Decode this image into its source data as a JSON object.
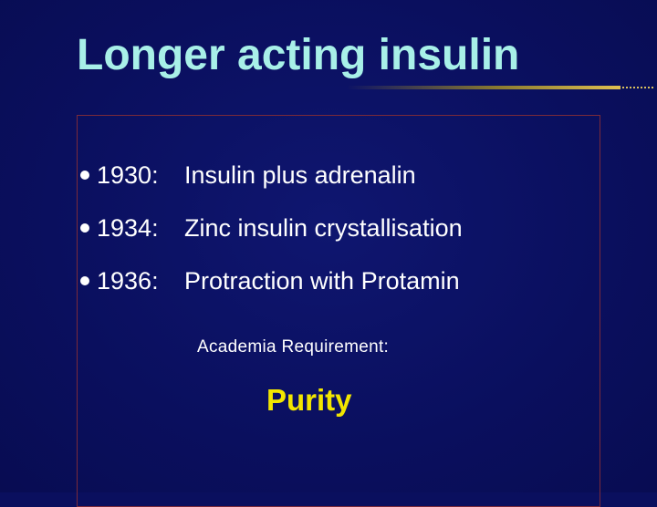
{
  "slide": {
    "title": "Longer acting insulin",
    "bullets": [
      {
        "year": "1930:",
        "text": "Insulin plus adrenalin"
      },
      {
        "year": "1934:",
        "text": "Zinc insulin crystallisation"
      },
      {
        "year": "1936:",
        "text": "Protraction with Protamin"
      }
    ],
    "subheading": "Academia Requirement:",
    "emphasis": "Purity"
  },
  "colors": {
    "background": "#0a0f5e",
    "title": "#a8f0e8",
    "body_text": "#ffffff",
    "emphasis": "#f2e600",
    "frame_border": "#7a2a3a"
  },
  "icons": {
    "bullet": "round-bullet-icon"
  }
}
